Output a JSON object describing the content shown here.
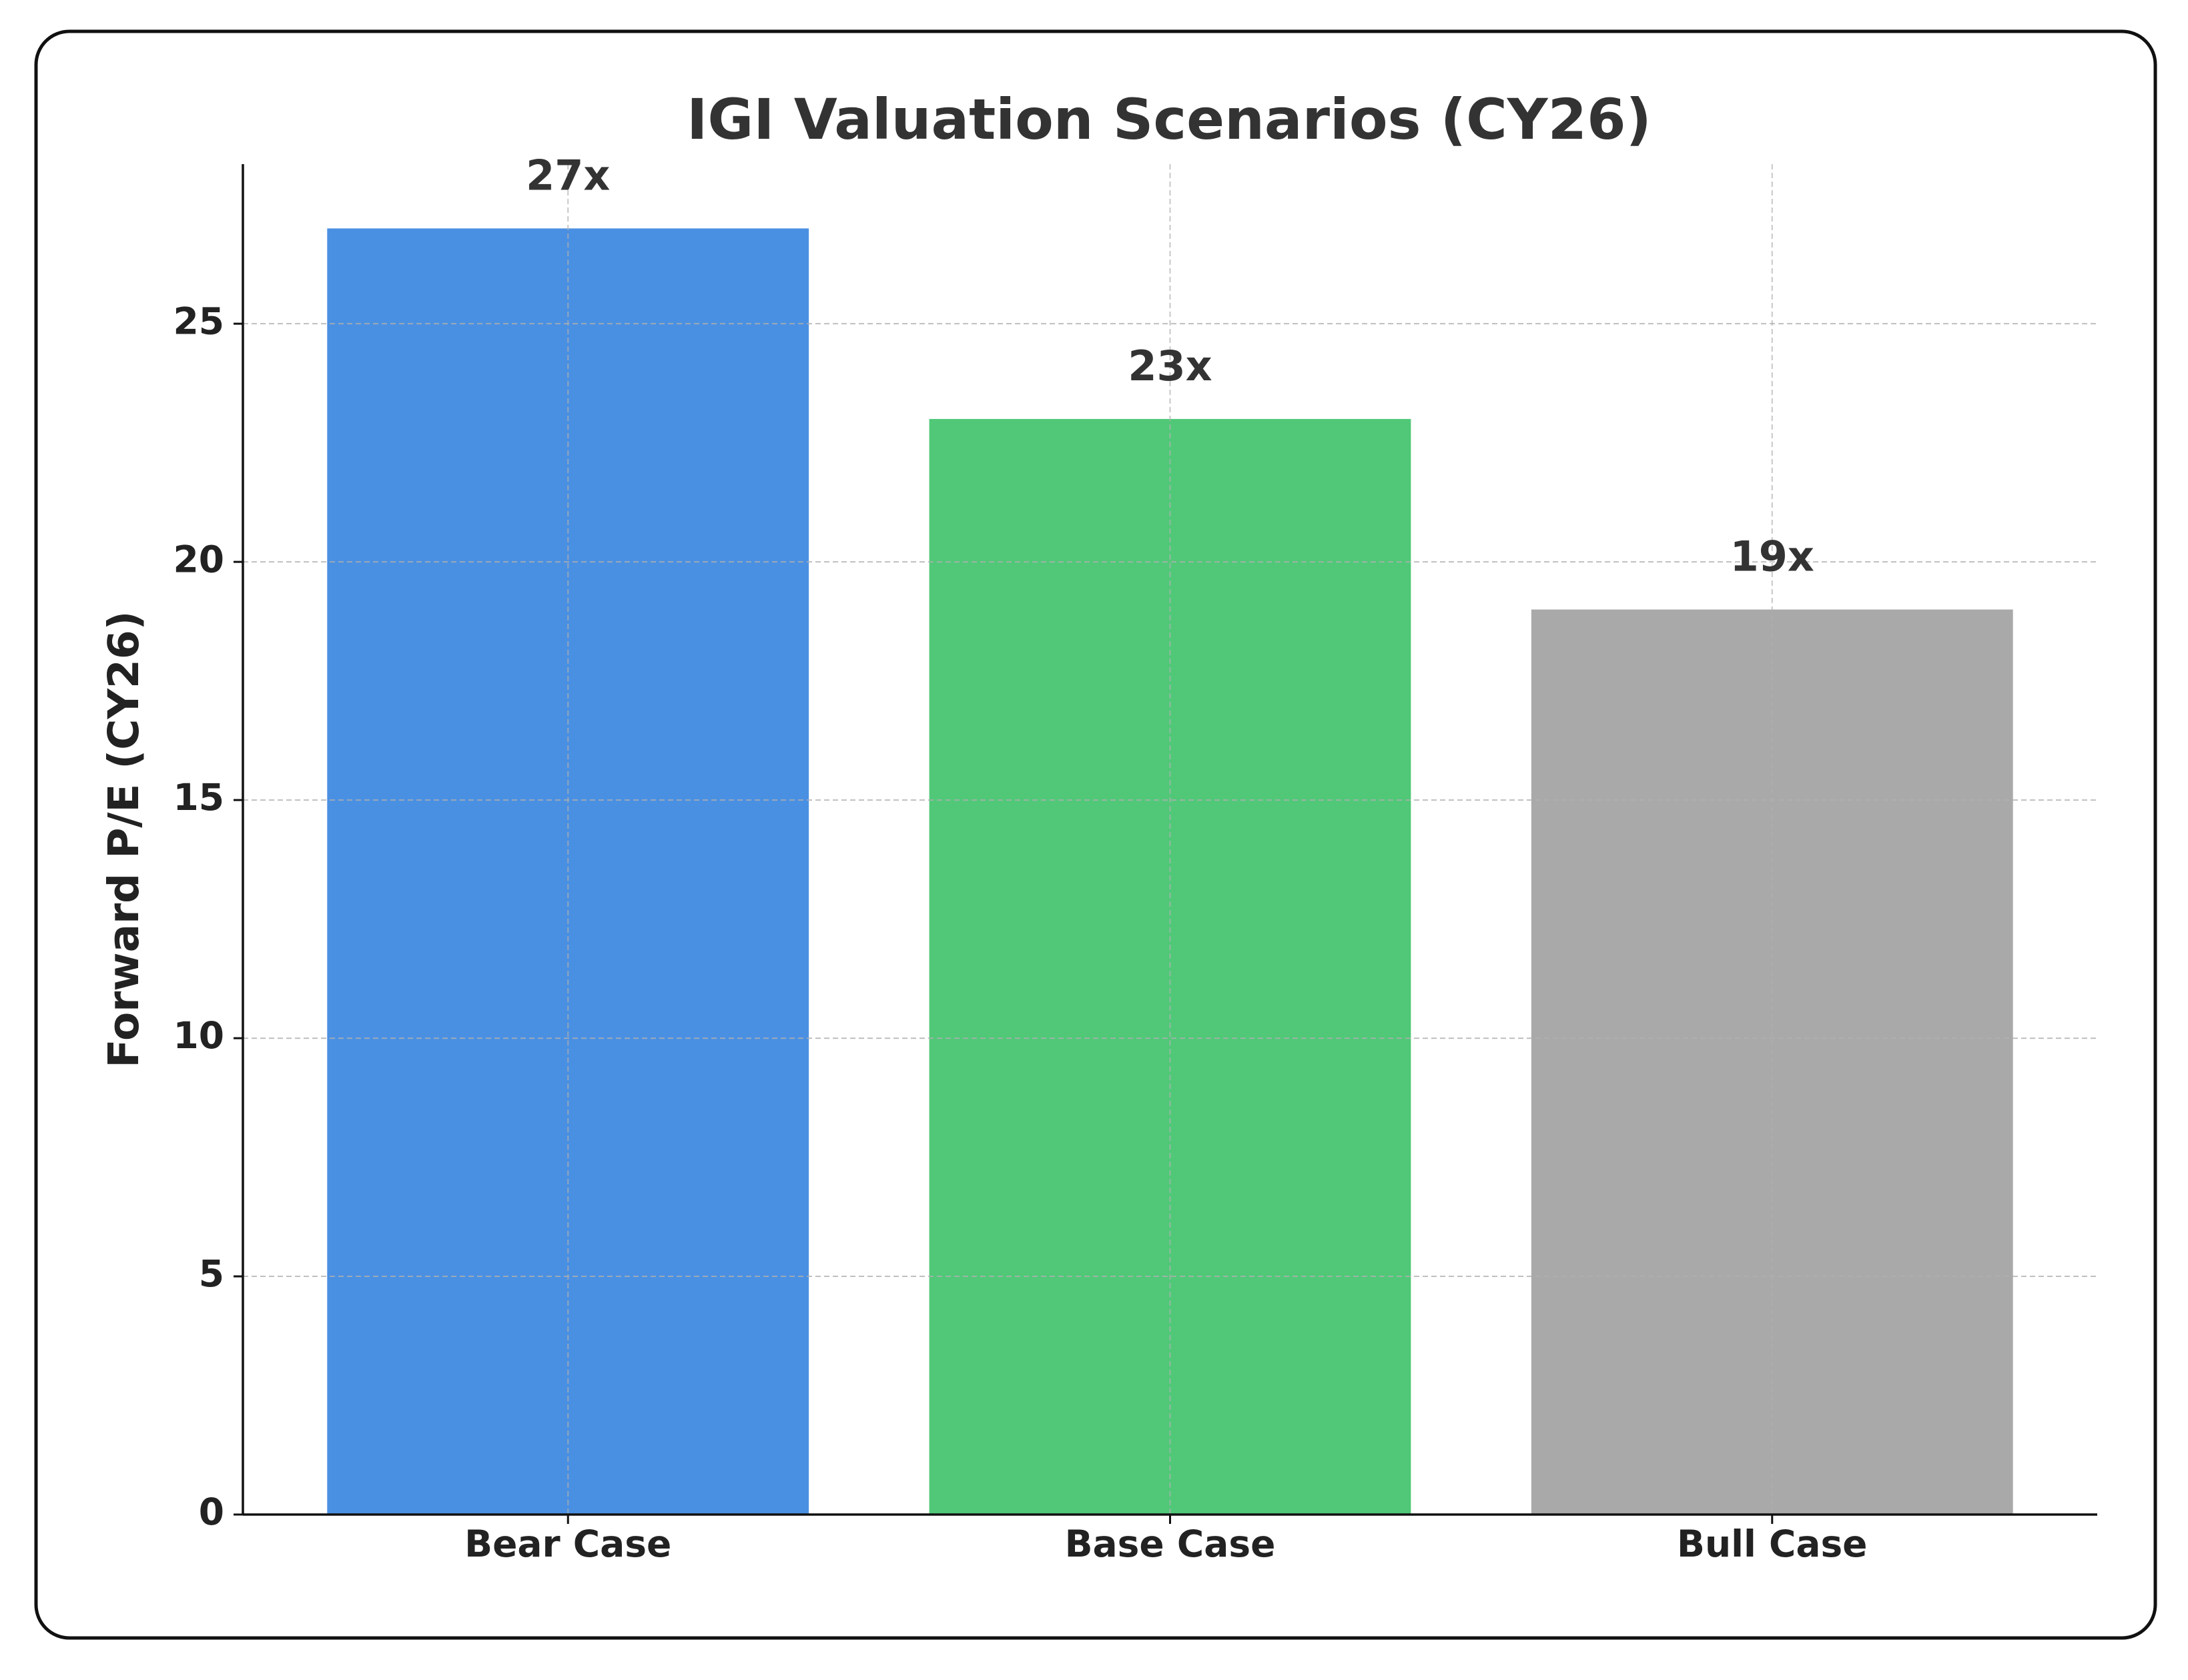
{
  "chart_data": {
    "type": "bar",
    "title": "IGI Valuation Scenarios (CY26)",
    "y_label": "Forward P/E (CY26)",
    "categories": [
      "Bear Case",
      "Base Case",
      "Bull Case"
    ],
    "values": [
      27,
      23,
      19
    ],
    "value_labels": [
      "27x",
      "23x",
      "19x"
    ],
    "colors": [
      "#4a90e2",
      "#50c878",
      "#a9a9a9"
    ],
    "ylim": [
      0,
      28.35
    ],
    "yticks": [
      0,
      5,
      10,
      15,
      20,
      25
    ],
    "grid": true
  }
}
